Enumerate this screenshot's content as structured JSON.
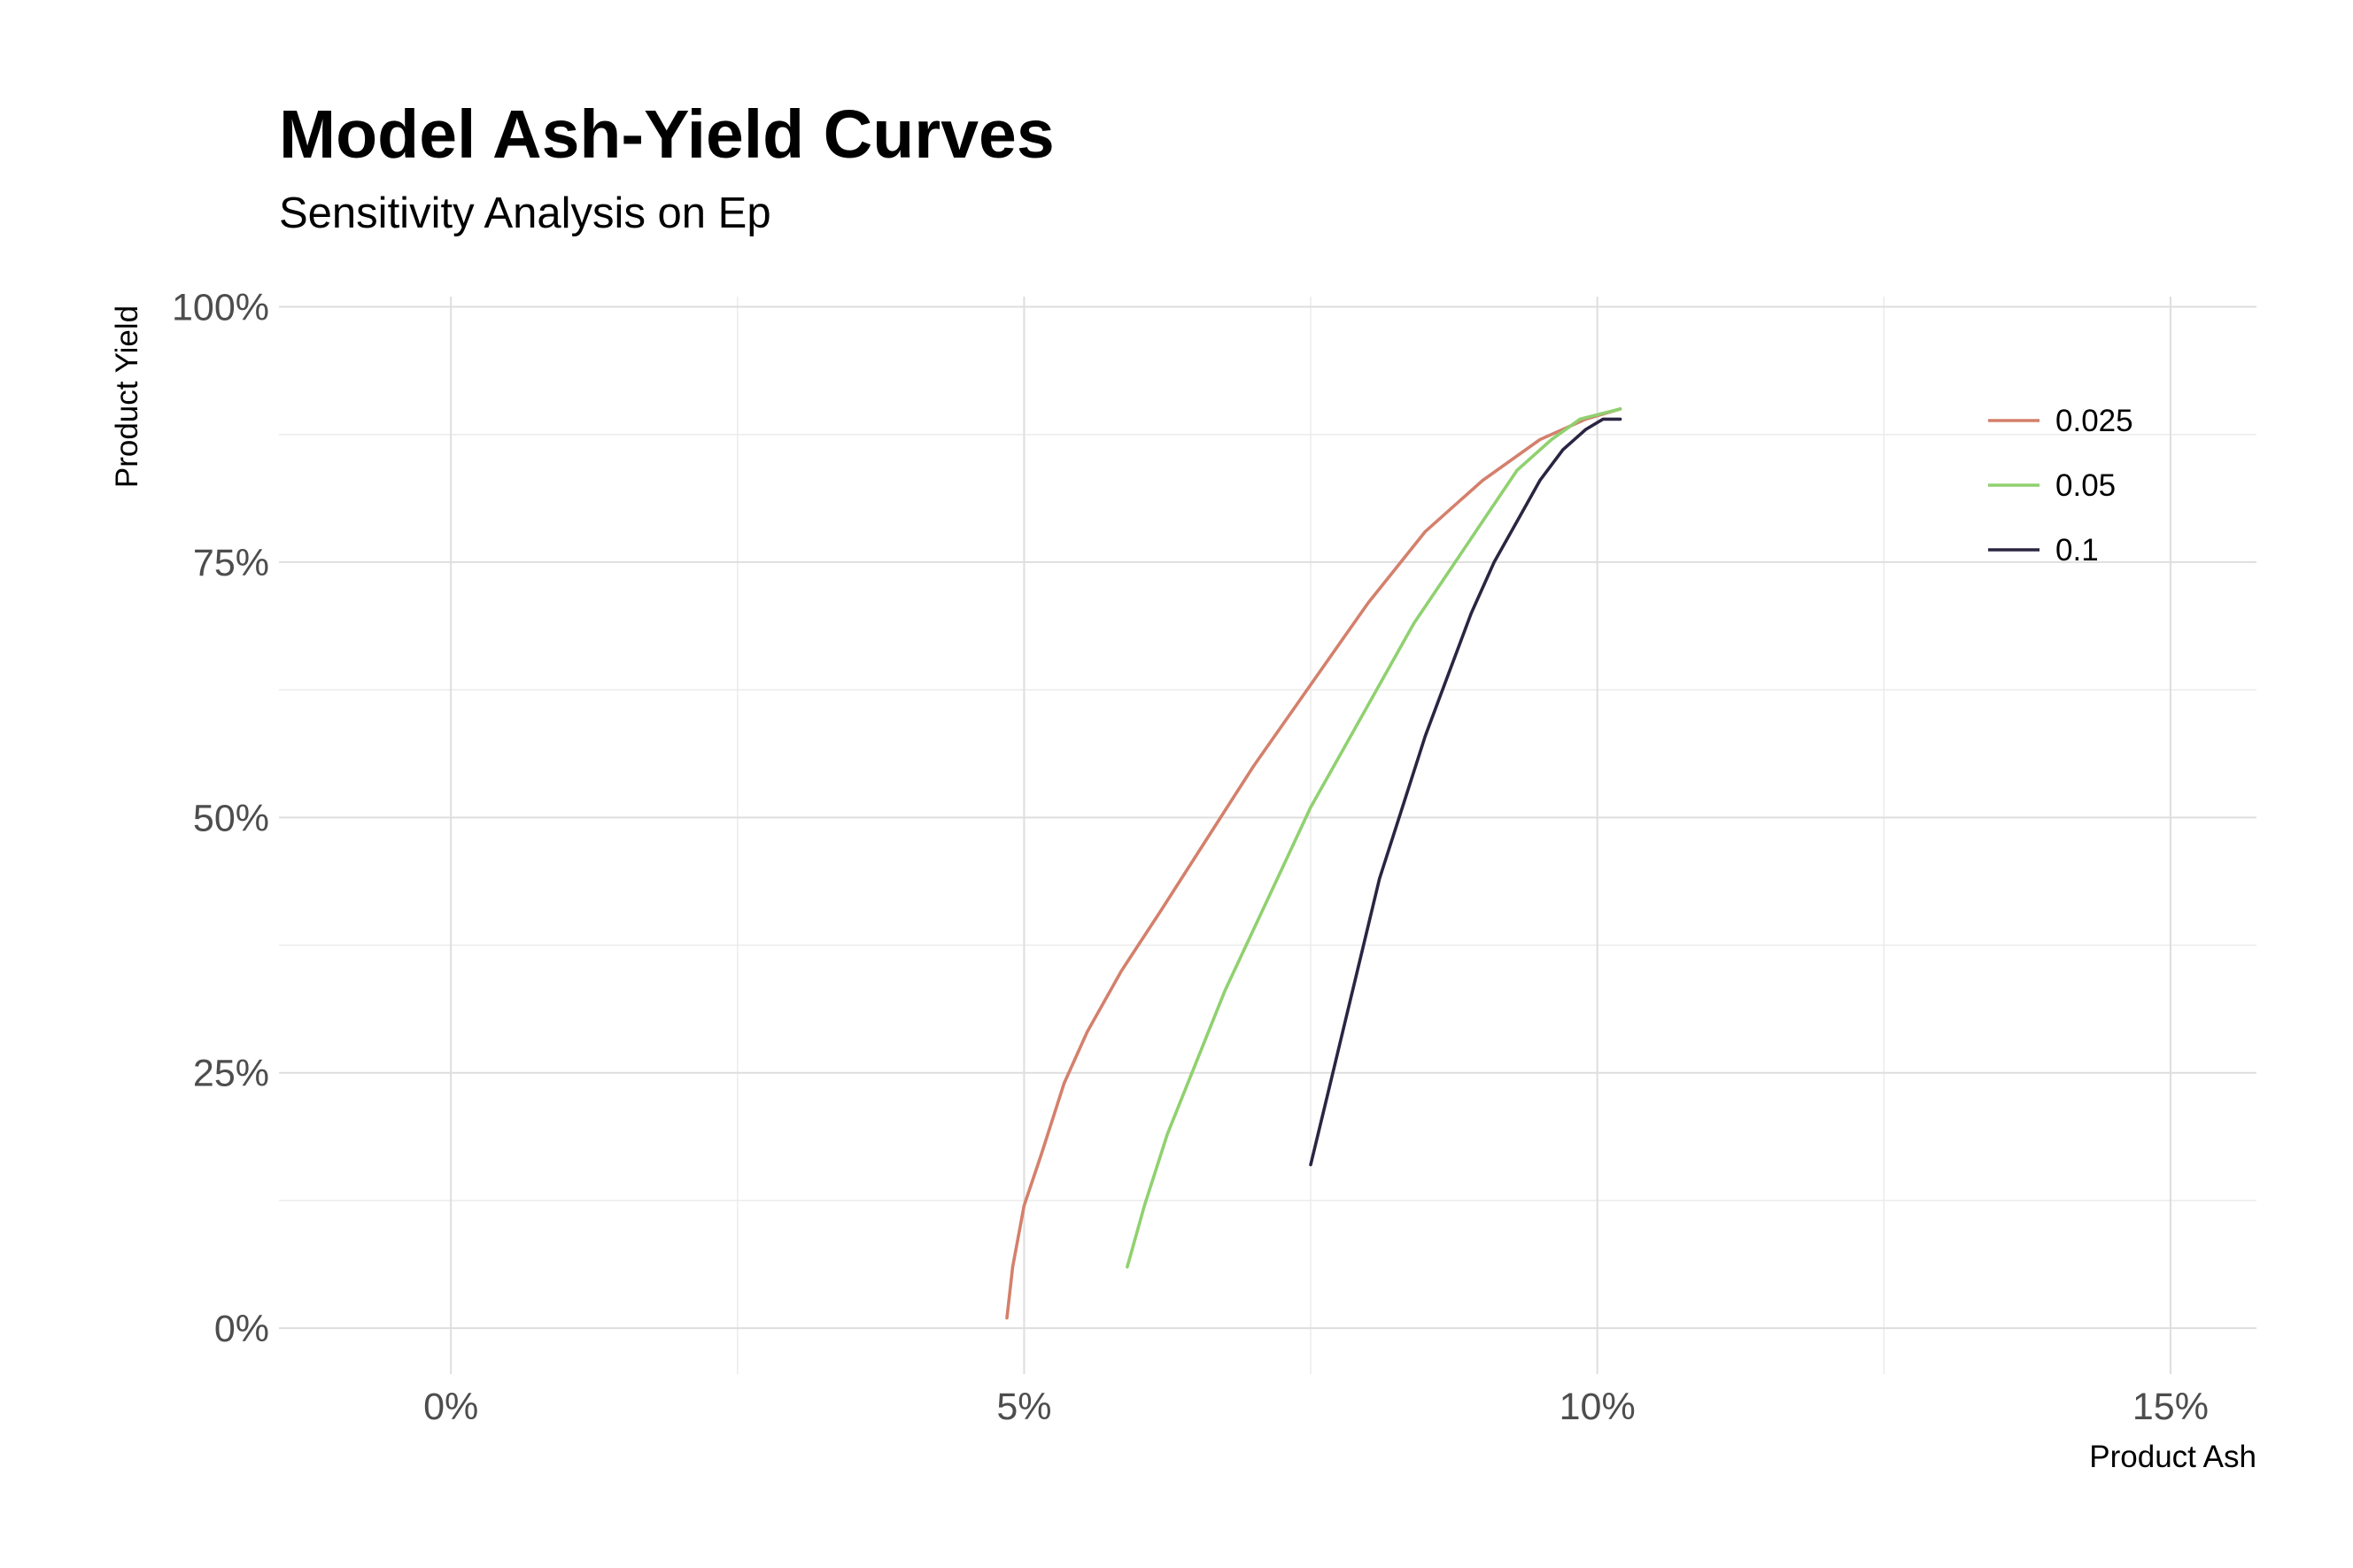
{
  "chart_data": {
    "type": "line",
    "title": "Model Ash-Yield Curves",
    "subtitle": "Sensitivity Analysis on Ep",
    "xlabel": "Product Ash",
    "ylabel": "Product Yield",
    "xlim": [
      -1.5,
      15.75
    ],
    "ylim": [
      -4.5,
      101
    ],
    "x_ticks": [
      0,
      5,
      10,
      15
    ],
    "x_tick_labels": [
      "0%",
      "5%",
      "10%",
      "15%"
    ],
    "y_ticks": [
      0,
      25,
      50,
      75,
      100
    ],
    "y_tick_labels": [
      "0%",
      "25%",
      "50%",
      "75%",
      "100%"
    ],
    "grid": true,
    "legend_position": "top-right",
    "series": [
      {
        "name": "0.025",
        "color": "#d4806c",
        "x": [
          4.85,
          4.9,
          5.0,
          5.15,
          5.35,
          5.55,
          5.85,
          6.2,
          6.6,
          7.0,
          7.5,
          8.0,
          8.5,
          9.0,
          9.5,
          9.9,
          10.2
        ],
        "y": [
          1,
          6,
          12,
          17,
          24,
          29,
          35,
          41,
          48,
          55,
          63,
          71,
          78,
          83,
          87,
          89,
          90
        ]
      },
      {
        "name": "0.05",
        "color": "#8fd16f",
        "x": [
          5.9,
          6.05,
          6.25,
          6.5,
          6.75,
          7.0,
          7.25,
          7.5,
          7.8,
          8.1,
          8.4,
          8.7,
          9.0,
          9.3,
          9.6,
          9.85,
          10.2
        ],
        "y": [
          6,
          12,
          19,
          26,
          33,
          39,
          45,
          51,
          57,
          63,
          69,
          74,
          79,
          84,
          87,
          89,
          90
        ]
      },
      {
        "name": "0.1",
        "color": "#2b2442",
        "x": [
          7.5,
          7.65,
          7.8,
          7.95,
          8.1,
          8.3,
          8.5,
          8.7,
          8.9,
          9.1,
          9.3,
          9.5,
          9.7,
          9.9,
          10.05,
          10.2
        ],
        "y": [
          16,
          23,
          30,
          37,
          44,
          51,
          58,
          64,
          70,
          75,
          79,
          83,
          86,
          88,
          89,
          89
        ]
      }
    ]
  }
}
